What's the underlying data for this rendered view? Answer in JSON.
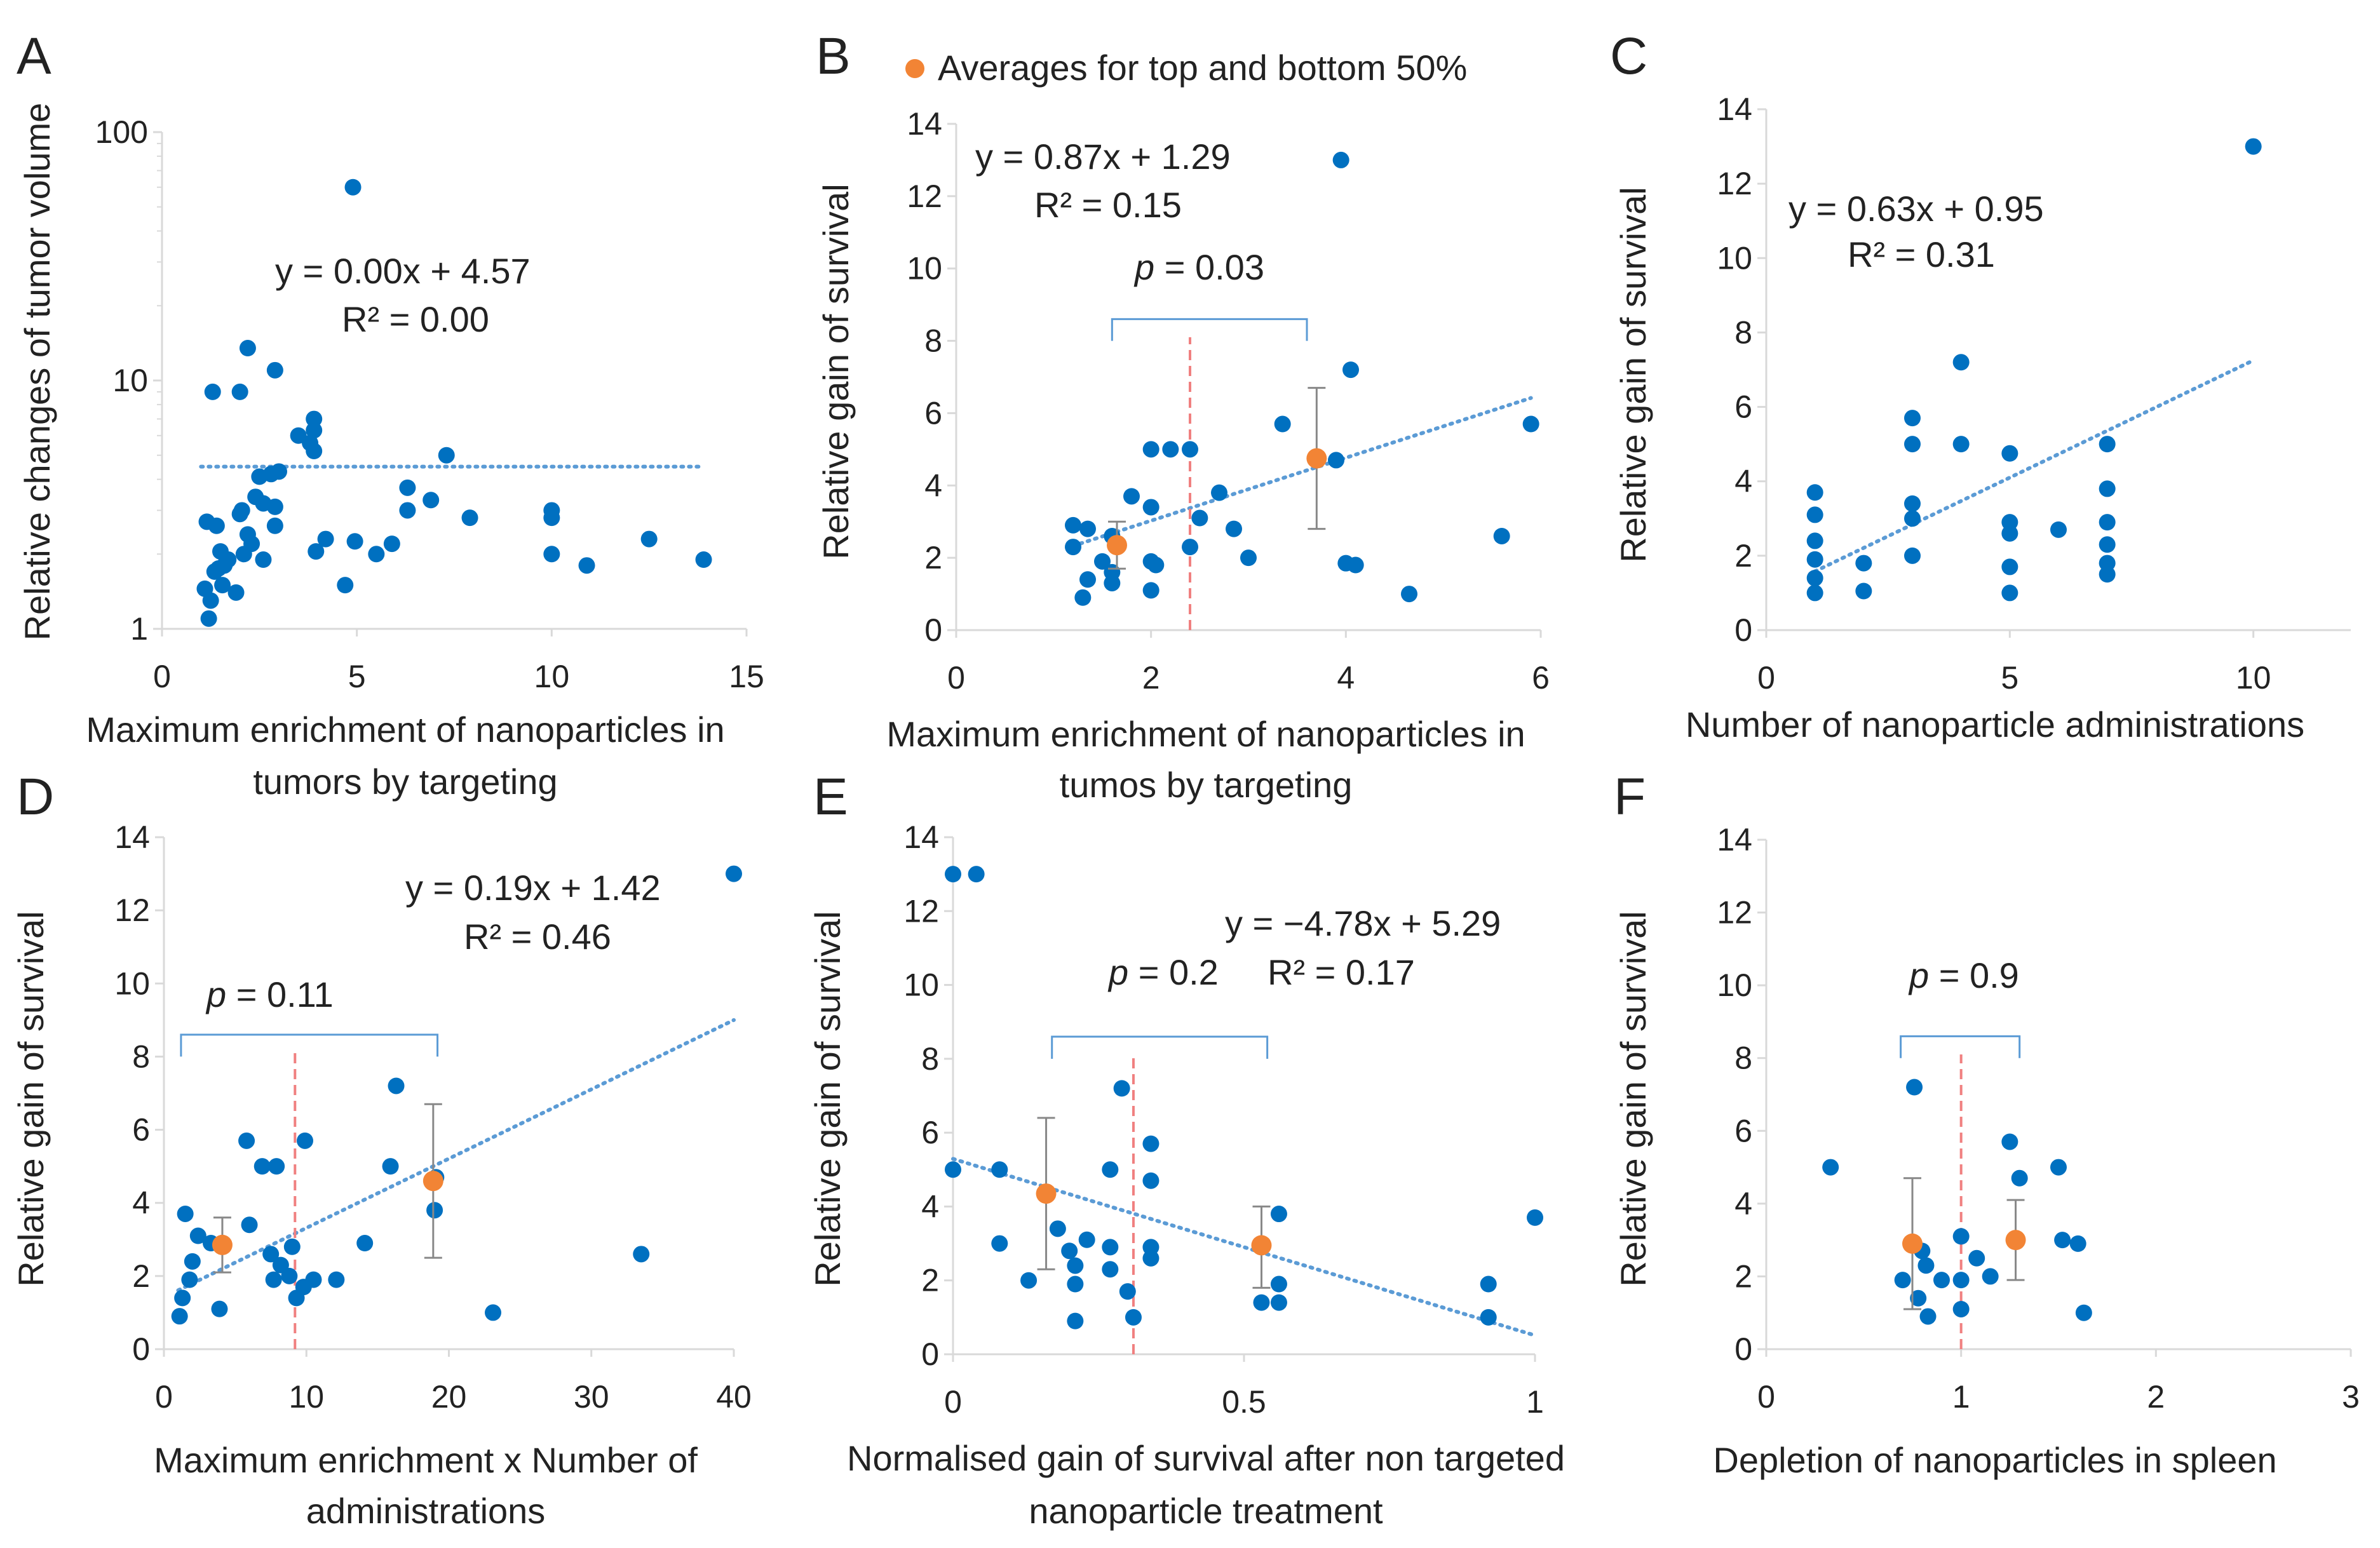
{
  "colors": {
    "point": "#0070C0",
    "average": "#F28435",
    "trend": "#5B9BD5",
    "divider": "#F08080",
    "bracket": "#5B9BD5",
    "axis": "#D9D9D9",
    "text": "#222222"
  },
  "legend": {
    "label": "Averages for top and bottom 50%",
    "marker": "orange-dot"
  },
  "chart_data": [
    {
      "panel": "A",
      "type": "scatter",
      "xscale": "linear",
      "yscale": "log",
      "xlim": [
        0,
        15
      ],
      "ylim": [
        1,
        100
      ],
      "xticks": [
        0,
        5,
        10,
        15
      ],
      "xtick_labels": [
        "0",
        "5",
        "10",
        "15"
      ],
      "yticks": [
        1,
        10,
        100
      ],
      "ytick_labels": [
        "1",
        "10",
        "100"
      ],
      "xlabel_lines": [
        "Maximum enrichment of nanoparticles in",
        "tumors by targeting"
      ],
      "ylabel": "Relative changes of tumor volume",
      "equation": "y = 0.00x + 4.57",
      "r2": "R² = 0.00",
      "trendline": [
        [
          1,
          4.5
        ],
        [
          13.9,
          4.5
        ]
      ],
      "points": [
        [
          1.1,
          1.45
        ],
        [
          1.15,
          2.7
        ],
        [
          1.2,
          1.1
        ],
        [
          1.25,
          1.3
        ],
        [
          1.3,
          9
        ],
        [
          1.35,
          1.7
        ],
        [
          1.4,
          2.6
        ],
        [
          1.45,
          1.75
        ],
        [
          1.5,
          2.05
        ],
        [
          1.55,
          1.5
        ],
        [
          1.6,
          1.8
        ],
        [
          1.7,
          1.9
        ],
        [
          1.9,
          1.4
        ],
        [
          2.0,
          9
        ],
        [
          2.0,
          2.9
        ],
        [
          2.05,
          3.0
        ],
        [
          2.1,
          2.0
        ],
        [
          2.2,
          13.5
        ],
        [
          2.2,
          2.4
        ],
        [
          2.3,
          2.2
        ],
        [
          2.4,
          3.4
        ],
        [
          2.5,
          4.1
        ],
        [
          2.6,
          3.2
        ],
        [
          2.6,
          1.9
        ],
        [
          2.8,
          4.2
        ],
        [
          2.9,
          11
        ],
        [
          2.9,
          2.6
        ],
        [
          2.9,
          3.1
        ],
        [
          3.0,
          4.3
        ],
        [
          3.5,
          6.0
        ],
        [
          3.8,
          5.6
        ],
        [
          3.9,
          7.0
        ],
        [
          3.9,
          6.3
        ],
        [
          3.9,
          5.2
        ],
        [
          3.95,
          2.05
        ],
        [
          4.2,
          2.3
        ],
        [
          4.7,
          1.5
        ],
        [
          4.9,
          60
        ],
        [
          4.95,
          2.25
        ],
        [
          5.5,
          2.0
        ],
        [
          5.9,
          2.2
        ],
        [
          6.3,
          3.7
        ],
        [
          6.3,
          3.0
        ],
        [
          6.9,
          3.3
        ],
        [
          7.3,
          5.0
        ],
        [
          7.9,
          2.8
        ],
        [
          10.0,
          3.0
        ],
        [
          10.0,
          2.8
        ],
        [
          10.0,
          2.0
        ],
        [
          10.9,
          1.8
        ],
        [
          12.5,
          2.3
        ],
        [
          13.9,
          1.9
        ]
      ]
    },
    {
      "panel": "B",
      "type": "scatter",
      "xscale": "linear",
      "yscale": "linear",
      "xlim": [
        0,
        6
      ],
      "ylim": [
        0,
        14
      ],
      "xticks": [
        0,
        2,
        4,
        6
      ],
      "xtick_labels": [
        "0",
        "2",
        "4",
        "6"
      ],
      "yticks": [
        0,
        2,
        4,
        6,
        8,
        10,
        12,
        14
      ],
      "ytick_labels": [
        "0",
        "2",
        "4",
        "6",
        "8",
        "10",
        "12",
        "14"
      ],
      "xlabel_lines": [
        "Maximum enrichment of nanoparticles in",
        "tumos by targeting"
      ],
      "ylabel": "Relative gain of survival",
      "equation": "y = 0.87x + 1.29",
      "r2": "R² = 0.15",
      "p_value": "= 0.03",
      "trendline": [
        [
          1.2,
          2.33
        ],
        [
          5.9,
          6.42
        ]
      ],
      "divider_x": 2.4,
      "bracket": [
        1.6,
        3.6
      ],
      "averages": [
        {
          "x": 1.65,
          "y": 2.35,
          "err_lo": 1.7,
          "err_hi": 3.0
        },
        {
          "x": 3.7,
          "y": 4.75,
          "err_lo": 2.8,
          "err_hi": 6.7
        }
      ],
      "points": [
        [
          1.2,
          2.3
        ],
        [
          1.2,
          2.9
        ],
        [
          1.3,
          0.9
        ],
        [
          1.35,
          2.8
        ],
        [
          1.35,
          1.4
        ],
        [
          1.5,
          1.9
        ],
        [
          1.6,
          1.3
        ],
        [
          1.6,
          1.6
        ],
        [
          1.6,
          2.6
        ],
        [
          1.8,
          3.7
        ],
        [
          2.0,
          5.0
        ],
        [
          2.0,
          3.4
        ],
        [
          2.0,
          1.9
        ],
        [
          2.0,
          1.1
        ],
        [
          2.05,
          1.8
        ],
        [
          2.2,
          5.0
        ],
        [
          2.4,
          5.0
        ],
        [
          2.4,
          2.3
        ],
        [
          2.5,
          3.1
        ],
        [
          2.7,
          3.8
        ],
        [
          2.85,
          2.8
        ],
        [
          3.0,
          2.0
        ],
        [
          3.35,
          5.7
        ],
        [
          3.9,
          4.7
        ],
        [
          3.95,
          13.0
        ],
        [
          4.0,
          1.85
        ],
        [
          4.05,
          7.2
        ],
        [
          4.1,
          1.8
        ],
        [
          4.65,
          1.0
        ],
        [
          5.6,
          2.6
        ],
        [
          5.9,
          5.7
        ]
      ]
    },
    {
      "panel": "C",
      "type": "scatter",
      "xscale": "linear",
      "yscale": "linear",
      "xlim": [
        0,
        12
      ],
      "ylim": [
        0,
        14
      ],
      "xticks": [
        0,
        5,
        10
      ],
      "xtick_labels": [
        "0",
        "5",
        "10"
      ],
      "yticks": [
        0,
        2,
        4,
        6,
        8,
        10,
        12,
        14
      ],
      "ytick_labels": [
        "0",
        "2",
        "4",
        "6",
        "8",
        "10",
        "12",
        "14"
      ],
      "xlabel_lines": [
        "Number of nanoparticle administrations"
      ],
      "ylabel": "Relative gain of survival",
      "equation": "y = 0.63x + 0.95",
      "r2": "R² = 0.31",
      "trendline": [
        [
          1,
          1.58
        ],
        [
          10,
          7.25
        ]
      ],
      "points": [
        [
          1,
          3.7
        ],
        [
          1,
          3.1
        ],
        [
          1,
          2.4
        ],
        [
          1,
          1.9
        ],
        [
          1,
          1.4
        ],
        [
          1,
          1.0
        ],
        [
          2,
          1.8
        ],
        [
          2,
          1.05
        ],
        [
          3,
          5.7
        ],
        [
          3,
          5.0
        ],
        [
          3,
          3.4
        ],
        [
          3,
          3.0
        ],
        [
          3,
          2.0
        ],
        [
          4,
          7.2
        ],
        [
          4,
          5.0
        ],
        [
          5,
          4.75
        ],
        [
          5,
          2.9
        ],
        [
          5,
          2.6
        ],
        [
          5,
          1.7
        ],
        [
          5,
          1.0
        ],
        [
          6,
          2.7
        ],
        [
          7,
          5.0
        ],
        [
          7,
          3.8
        ],
        [
          7,
          2.9
        ],
        [
          7,
          2.3
        ],
        [
          7,
          1.8
        ],
        [
          7,
          1.5
        ],
        [
          10,
          13.0
        ]
      ]
    },
    {
      "panel": "D",
      "type": "scatter",
      "xscale": "linear",
      "yscale": "linear",
      "xlim": [
        0,
        40
      ],
      "ylim": [
        0,
        14
      ],
      "xticks": [
        0,
        10,
        20,
        30,
        40
      ],
      "xtick_labels": [
        "0",
        "10",
        "20",
        "30",
        "40"
      ],
      "yticks": [
        0,
        2,
        4,
        6,
        8,
        10,
        12,
        14
      ],
      "ytick_labels": [
        "0",
        "2",
        "4",
        "6",
        "8",
        "10",
        "12",
        "14"
      ],
      "xlabel_lines": [
        "Maximum enrichment x Number of",
        "administrations"
      ],
      "ylabel": "Relative gain of survival",
      "equation": "y = 0.19x + 1.42",
      "r2": "R² = 0.46",
      "p_value": "= 0.11",
      "trendline": [
        [
          1,
          1.61
        ],
        [
          40,
          9.0
        ]
      ],
      "divider_x": 9.2,
      "bracket": [
        1.2,
        19.2
      ],
      "averages": [
        {
          "x": 4.1,
          "y": 2.85,
          "err_lo": 2.1,
          "err_hi": 3.6
        },
        {
          "x": 18.9,
          "y": 4.6,
          "err_lo": 2.5,
          "err_hi": 6.7
        }
      ],
      "points": [
        [
          1.1,
          0.9
        ],
        [
          1.3,
          1.4
        ],
        [
          1.5,
          3.7
        ],
        [
          1.8,
          1.9
        ],
        [
          2.0,
          2.4
        ],
        [
          2.4,
          3.1
        ],
        [
          3.3,
          2.9
        ],
        [
          3.9,
          1.1
        ],
        [
          5.8,
          5.7
        ],
        [
          6.0,
          3.4
        ],
        [
          6.9,
          5.0
        ],
        [
          7.5,
          2.6
        ],
        [
          7.7,
          1.9
        ],
        [
          7.9,
          5.0
        ],
        [
          8.2,
          2.3
        ],
        [
          8.8,
          2.0
        ],
        [
          9.0,
          2.8
        ],
        [
          9.3,
          1.4
        ],
        [
          9.8,
          1.7
        ],
        [
          9.9,
          5.7
        ],
        [
          10.5,
          1.9
        ],
        [
          12.1,
          1.9
        ],
        [
          14.1,
          2.9
        ],
        [
          15.9,
          5.0
        ],
        [
          16.3,
          7.2
        ],
        [
          19.0,
          3.8
        ],
        [
          19.1,
          4.7
        ],
        [
          23.1,
          1.0
        ],
        [
          33.5,
          2.6
        ],
        [
          40.0,
          13.0
        ]
      ]
    },
    {
      "panel": "E",
      "type": "scatter",
      "xscale": "linear",
      "yscale": "linear",
      "xlim": [
        0,
        1
      ],
      "ylim": [
        0,
        14
      ],
      "xticks": [
        0,
        0.5,
        1
      ],
      "xtick_labels": [
        "0",
        "0.5",
        "1"
      ],
      "yticks": [
        0,
        2,
        4,
        6,
        8,
        10,
        12,
        14
      ],
      "ytick_labels": [
        "0",
        "2",
        "4",
        "6",
        "8",
        "10",
        "12",
        "14"
      ],
      "xlabel_lines": [
        "Normalised gain of survival after non targeted",
        "nanoparticle treatment"
      ],
      "ylabel": "Relative gain of survival",
      "equation": "y = −4.78x + 5.29",
      "r2": "R² = 0.17",
      "p_value": "= 0.2",
      "trendline": [
        [
          0,
          5.29
        ],
        [
          1,
          0.51
        ]
      ],
      "divider_x": 0.31,
      "bracket": [
        0.17,
        0.54
      ],
      "averages": [
        {
          "x": 0.16,
          "y": 4.35,
          "err_lo": 2.3,
          "err_hi": 6.4
        },
        {
          "x": 0.53,
          "y": 2.95,
          "err_lo": 1.8,
          "err_hi": 4.0
        }
      ],
      "points": [
        [
          0.0,
          13.0
        ],
        [
          0.04,
          13.0
        ],
        [
          0.0,
          5.0
        ],
        [
          0.08,
          5.0
        ],
        [
          0.08,
          3.0
        ],
        [
          0.13,
          2.0
        ],
        [
          0.16,
          4.35
        ],
        [
          0.18,
          3.4
        ],
        [
          0.2,
          2.8
        ],
        [
          0.21,
          2.4
        ],
        [
          0.21,
          1.9
        ],
        [
          0.21,
          0.9
        ],
        [
          0.23,
          3.1
        ],
        [
          0.27,
          5.0
        ],
        [
          0.27,
          2.9
        ],
        [
          0.27,
          2.3
        ],
        [
          0.29,
          7.2
        ],
        [
          0.3,
          1.7
        ],
        [
          0.31,
          1.0
        ],
        [
          0.34,
          5.7
        ],
        [
          0.34,
          4.7
        ],
        [
          0.34,
          2.9
        ],
        [
          0.34,
          2.6
        ],
        [
          0.53,
          1.4
        ],
        [
          0.56,
          3.8
        ],
        [
          0.56,
          1.9
        ],
        [
          0.56,
          1.4
        ],
        [
          0.92,
          1.9
        ],
        [
          0.92,
          1.0
        ],
        [
          1.0,
          3.7
        ]
      ]
    },
    {
      "panel": "F",
      "type": "scatter",
      "xscale": "linear",
      "yscale": "linear",
      "xlim": [
        0,
        3
      ],
      "ylim": [
        0,
        14
      ],
      "xticks": [
        0,
        1,
        2,
        3
      ],
      "xtick_labels": [
        "0",
        "1",
        "2",
        "3"
      ],
      "yticks": [
        0,
        2,
        4,
        6,
        8,
        10,
        12,
        14
      ],
      "ytick_labels": [
        "0",
        "2",
        "4",
        "6",
        "8",
        "10",
        "12",
        "14"
      ],
      "xlabel_lines": [
        "Depletion of nanoparticles  in spleen"
      ],
      "ylabel": "Relative gain of survival",
      "p_value": "= 0.9",
      "divider_x": 1.0,
      "bracket": [
        0.69,
        1.3
      ],
      "averages": [
        {
          "x": 0.75,
          "y": 2.9,
          "err_lo": 1.1,
          "err_hi": 4.7
        },
        {
          "x": 1.28,
          "y": 3.0,
          "err_lo": 1.9,
          "err_hi": 4.1
        }
      ],
      "points": [
        [
          0.33,
          5.0
        ],
        [
          0.7,
          1.9
        ],
        [
          0.76,
          7.2
        ],
        [
          0.78,
          1.4
        ],
        [
          0.8,
          2.7
        ],
        [
          0.82,
          2.3
        ],
        [
          0.83,
          0.9
        ],
        [
          0.9,
          1.9
        ],
        [
          1.0,
          3.1
        ],
        [
          1.0,
          1.9
        ],
        [
          1.0,
          1.1
        ],
        [
          1.08,
          2.5
        ],
        [
          1.15,
          2.0
        ],
        [
          1.25,
          5.7
        ],
        [
          1.3,
          4.7
        ],
        [
          1.5,
          5.0
        ],
        [
          1.52,
          3.0
        ],
        [
          1.6,
          2.9
        ],
        [
          1.63,
          1.0
        ]
      ]
    }
  ]
}
